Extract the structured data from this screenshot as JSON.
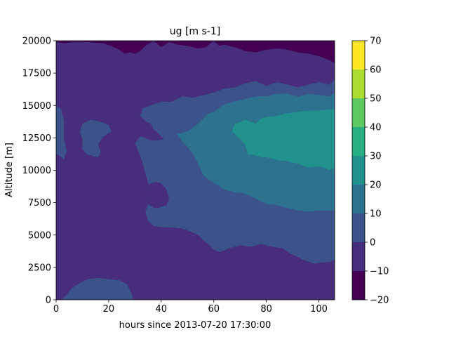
{
  "chart_data": {
    "type": "heatmap",
    "subtype": "filled-contour",
    "title": "ug [m s-1]",
    "xlabel": "hours since 2013-07-20 17:30:00",
    "ylabel": "Altitude [m]",
    "xlim": [
      0,
      106
    ],
    "ylim": [
      0,
      20000
    ],
    "x_ticks": [
      "0",
      "20",
      "40",
      "60",
      "80",
      "100"
    ],
    "y_ticks": [
      "0",
      "2500",
      "5000",
      "7500",
      "10000",
      "12500",
      "15000",
      "17500",
      "20000"
    ],
    "x_tick_values": [
      0,
      20,
      40,
      60,
      80,
      100
    ],
    "y_tick_values": [
      0,
      2500,
      5000,
      7500,
      10000,
      12500,
      15000,
      17500,
      20000
    ],
    "colorbar": {
      "levels": [
        -20,
        -10,
        0,
        10,
        20,
        30,
        40,
        50,
        60,
        70
      ],
      "tick_labels": [
        "−20",
        "−10",
        "0",
        "10",
        "20",
        "30",
        "40",
        "50",
        "60",
        "70"
      ],
      "colors": [
        "#440154",
        "#472d7b",
        "#3b528b",
        "#2c728e",
        "#21918c",
        "#28ae80",
        "#5ec962",
        "#addc30",
        "#fde725"
      ]
    },
    "background_color": "#472d7b",
    "regions": [
      {
        "name": "upper-negative-band",
        "color": "#440154",
        "points": [
          [
            0,
            20000
          ],
          [
            106,
            20000
          ],
          [
            106,
            18300
          ],
          [
            104,
            18500
          ],
          [
            100,
            18800
          ],
          [
            96,
            19000
          ],
          [
            92,
            19100
          ],
          [
            88,
            19300
          ],
          [
            84,
            19400
          ],
          [
            80,
            19300
          ],
          [
            76,
            19100
          ],
          [
            72,
            19200
          ],
          [
            68,
            19500
          ],
          [
            64,
            19700
          ],
          [
            62,
            19600
          ],
          [
            60,
            20000
          ],
          [
            57,
            19500
          ],
          [
            54,
            19400
          ],
          [
            50,
            19600
          ],
          [
            46,
            19700
          ],
          [
            43,
            19900
          ],
          [
            40,
            19500
          ],
          [
            37,
            20000
          ],
          [
            34,
            19600
          ],
          [
            32,
            19200
          ],
          [
            30,
            19000
          ],
          [
            28,
            19100
          ],
          [
            26,
            19000
          ],
          [
            24,
            19300
          ],
          [
            22,
            19500
          ],
          [
            18,
            19800
          ],
          [
            12,
            19900
          ],
          [
            6,
            19900
          ],
          [
            3,
            19800
          ],
          [
            0,
            19900
          ]
        ]
      },
      {
        "name": "jet-outer-0-10",
        "color": "#3b528b",
        "points": [
          [
            106,
            17000
          ],
          [
            104,
            16600
          ],
          [
            100,
            16800
          ],
          [
            96,
            16600
          ],
          [
            92,
            16400
          ],
          [
            88,
            16600
          ],
          [
            84,
            16800
          ],
          [
            80,
            16500
          ],
          [
            76,
            16900
          ],
          [
            72,
            16700
          ],
          [
            68,
            16400
          ],
          [
            64,
            16300
          ],
          [
            60,
            16000
          ],
          [
            56,
            15800
          ],
          [
            52,
            15600
          ],
          [
            48,
            15700
          ],
          [
            44,
            15300
          ],
          [
            40,
            15300
          ],
          [
            36,
            15000
          ],
          [
            33,
            14800
          ],
          [
            32,
            14200
          ],
          [
            34,
            13800
          ],
          [
            36,
            13600
          ],
          [
            37,
            13200
          ],
          [
            39,
            12800
          ],
          [
            41,
            12400
          ],
          [
            38,
            12300
          ],
          [
            36,
            12300
          ],
          [
            34,
            12500
          ],
          [
            32,
            12600
          ],
          [
            30,
            12100
          ],
          [
            32,
            11100
          ],
          [
            33,
            10500
          ],
          [
            34,
            9700
          ],
          [
            35,
            9000
          ],
          [
            36,
            8200
          ],
          [
            38,
            7400
          ],
          [
            37,
            7100
          ],
          [
            35,
            8000
          ],
          [
            34,
            8500
          ],
          [
            33,
            9000
          ],
          [
            34,
            8500
          ],
          [
            35,
            8000
          ],
          [
            35,
            7400
          ],
          [
            34,
            6800
          ],
          [
            35,
            6100
          ],
          [
            37,
            5700
          ],
          [
            40,
            5600
          ],
          [
            44,
            5600
          ],
          [
            48,
            5500
          ],
          [
            51,
            5300
          ],
          [
            54,
            5000
          ],
          [
            56,
            4600
          ],
          [
            58,
            4300
          ],
          [
            60,
            3900
          ],
          [
            62,
            3700
          ],
          [
            64,
            3800
          ],
          [
            66,
            4000
          ],
          [
            70,
            4200
          ],
          [
            74,
            4100
          ],
          [
            78,
            4300
          ],
          [
            82,
            4100
          ],
          [
            86,
            4000
          ],
          [
            89,
            3600
          ],
          [
            92,
            3300
          ],
          [
            95,
            3000
          ],
          [
            98,
            2800
          ],
          [
            102,
            2900
          ],
          [
            104,
            2900
          ],
          [
            106,
            3100
          ]
        ]
      },
      {
        "name": "left-edge-0-10",
        "color": "#3b528b",
        "points": [
          [
            0,
            15000
          ],
          [
            2,
            14700
          ],
          [
            3,
            13800
          ],
          [
            3,
            12500
          ],
          [
            4,
            11500
          ],
          [
            3,
            10800
          ],
          [
            2,
            11000
          ],
          [
            0,
            11300
          ]
        ]
      },
      {
        "name": "left-blob-0-10",
        "color": "#3b528b",
        "points": [
          [
            10,
            13600
          ],
          [
            13,
            13900
          ],
          [
            16,
            13800
          ],
          [
            20,
            13500
          ],
          [
            21,
            13000
          ],
          [
            18,
            12600
          ],
          [
            16,
            12000
          ],
          [
            17,
            11400
          ],
          [
            16,
            11000
          ],
          [
            14,
            11100
          ],
          [
            12,
            11200
          ],
          [
            10,
            11600
          ],
          [
            10,
            12400
          ],
          [
            9,
            13000
          ]
        ]
      },
      {
        "name": "bottom-blob-0-10",
        "color": "#3b528b",
        "points": [
          [
            2,
            0
          ],
          [
            4,
            400
          ],
          [
            6,
            900
          ],
          [
            9,
            1300
          ],
          [
            12,
            1600
          ],
          [
            16,
            1700
          ],
          [
            20,
            1600
          ],
          [
            24,
            1500
          ],
          [
            27,
            1200
          ],
          [
            28,
            800
          ],
          [
            29,
            400
          ],
          [
            29,
            0
          ]
        ]
      },
      {
        "name": "mid-blob-negative",
        "color": "#472d7b",
        "points": [
          [
            35,
            8800
          ],
          [
            34,
            8000
          ],
          [
            35,
            7400
          ],
          [
            37,
            7100
          ],
          [
            39,
            7100
          ],
          [
            42,
            7300
          ],
          [
            43,
            7800
          ],
          [
            42,
            8500
          ],
          [
            40,
            9000
          ],
          [
            38,
            9100
          ],
          [
            36,
            9000
          ]
        ]
      },
      {
        "name": "jet-10-20",
        "color": "#2c728e",
        "points": [
          [
            106,
            16000
          ],
          [
            104,
            15700
          ],
          [
            100,
            15800
          ],
          [
            96,
            15900
          ],
          [
            92,
            15700
          ],
          [
            88,
            15900
          ],
          [
            84,
            15900
          ],
          [
            80,
            15700
          ],
          [
            76,
            15700
          ],
          [
            72,
            15500
          ],
          [
            68,
            15300
          ],
          [
            64,
            15100
          ],
          [
            60,
            14500
          ],
          [
            58,
            14400
          ],
          [
            56,
            14000
          ],
          [
            54,
            13600
          ],
          [
            52,
            13300
          ],
          [
            50,
            13000
          ],
          [
            48,
            12900
          ],
          [
            46,
            12800
          ],
          [
            48,
            12200
          ],
          [
            50,
            11800
          ],
          [
            52,
            11300
          ],
          [
            54,
            10500
          ],
          [
            56,
            9600
          ],
          [
            58,
            9300
          ],
          [
            60,
            9000
          ],
          [
            62,
            8800
          ],
          [
            64,
            8500
          ],
          [
            68,
            8300
          ],
          [
            72,
            8200
          ],
          [
            76,
            7800
          ],
          [
            80,
            7400
          ],
          [
            84,
            7300
          ],
          [
            88,
            7100
          ],
          [
            92,
            6900
          ],
          [
            96,
            6800
          ],
          [
            100,
            6900
          ],
          [
            104,
            6900
          ],
          [
            106,
            6900
          ]
        ]
      },
      {
        "name": "jet-core-20-30",
        "color": "#21918c",
        "points": [
          [
            106,
            14700
          ],
          [
            104,
            14700
          ],
          [
            100,
            14600
          ],
          [
            96,
            14600
          ],
          [
            92,
            14500
          ],
          [
            88,
            14400
          ],
          [
            84,
            14200
          ],
          [
            80,
            14100
          ],
          [
            78,
            14000
          ],
          [
            76,
            13600
          ],
          [
            72,
            13900
          ],
          [
            70,
            13700
          ],
          [
            68,
            13600
          ],
          [
            67,
            13000
          ],
          [
            70,
            12400
          ],
          [
            72,
            12000
          ],
          [
            73,
            11200
          ],
          [
            75,
            11200
          ],
          [
            78,
            11000
          ],
          [
            80,
            11000
          ],
          [
            84,
            10800
          ],
          [
            88,
            10700
          ],
          [
            92,
            10500
          ],
          [
            96,
            10200
          ],
          [
            99,
            10300
          ],
          [
            102,
            10200
          ],
          [
            104,
            10000
          ],
          [
            106,
            10200
          ]
        ]
      }
    ]
  }
}
